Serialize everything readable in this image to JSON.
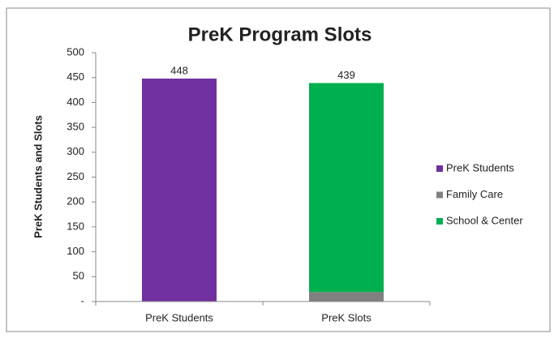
{
  "chart_data": {
    "type": "stacked_bar",
    "title": "PreK Program Slots",
    "y_label": "PreK Students and Slots",
    "categories": [
      "PreK Students",
      "PreK Slots"
    ],
    "series": [
      {
        "name": "PreK Students",
        "color": "#7030a0",
        "values": [
          448,
          null
        ]
      },
      {
        "name": "Family Care",
        "color": "#808080",
        "values": [
          null,
          19
        ]
      },
      {
        "name": "School & Center",
        "color": "#00b050",
        "values": [
          null,
          420
        ]
      }
    ],
    "totals": [
      448,
      439
    ],
    "ylim": [
      0,
      500
    ],
    "yticks": [
      {
        "value": 0,
        "label": "-"
      },
      50,
      100,
      150,
      200,
      250,
      300,
      350,
      400,
      450,
      500
    ],
    "legend": "right"
  }
}
